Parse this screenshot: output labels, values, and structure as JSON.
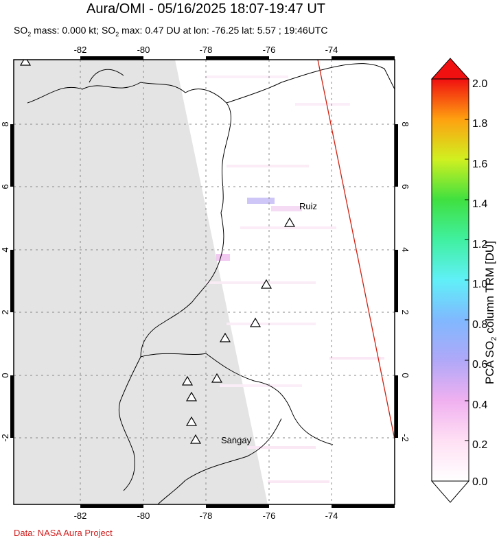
{
  "title": "Aura/OMI - 05/16/2025 18:07-19:47 UT",
  "subtitle": {
    "so2_prefix": "SO",
    "so2_sub": "2",
    "mass_text": " mass: 0.000 kt; SO",
    "max_text": " max: 0.47 DU at lon: -76.25 lat: 5.57 ; 19:46UTC"
  },
  "credit": "Data: NASA Aura Project",
  "colorbar": {
    "label_prefix": "PCA SO",
    "label_sub": "2",
    "label_suffix": " column TRM [DU]",
    "ticks": [
      "2.0",
      "1.8",
      "1.6",
      "1.4",
      "1.2",
      "1.0",
      "0.8",
      "0.6",
      "0.4",
      "0.2",
      "0.0"
    ],
    "min": 0.0,
    "max": 2.0
  },
  "map": {
    "lon_range": [
      -84,
      -72
    ],
    "lat_range": [
      -4,
      10
    ],
    "lon_ticks": [
      "-82",
      "-80",
      "-78",
      "-76",
      "-74"
    ],
    "lat_ticks": [
      "8",
      "6",
      "4",
      "2",
      "0",
      "-2"
    ],
    "volcano_labels": [
      "Ruiz",
      "Sangay"
    ],
    "colors": {
      "no_data": "#e4e4e4",
      "land_border": "#000000",
      "orbit_edge": "#d02010",
      "grid": "#888888"
    }
  }
}
